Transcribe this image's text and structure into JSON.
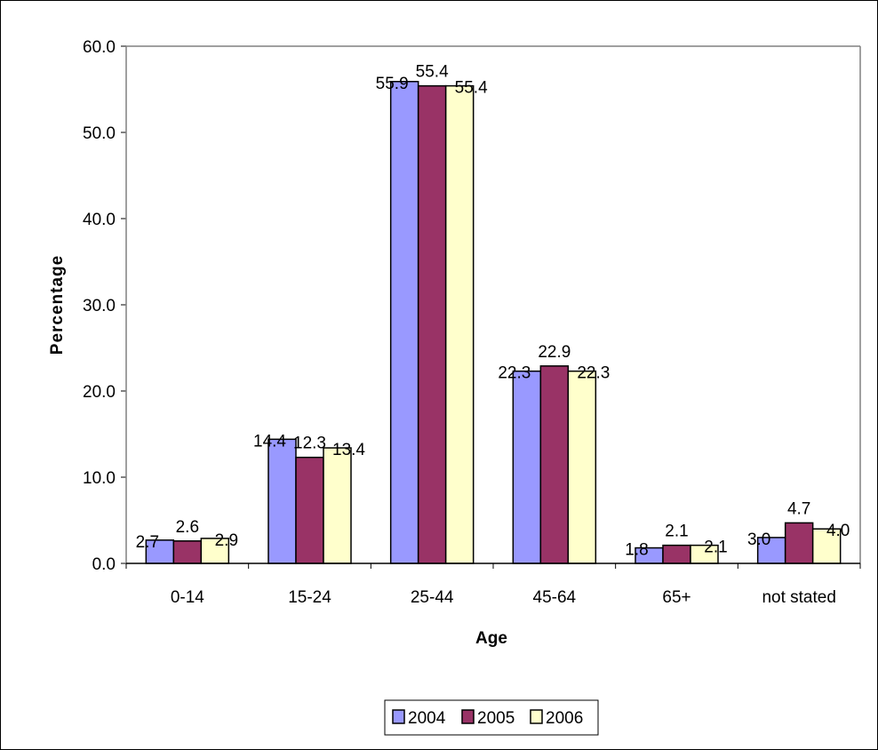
{
  "chart_data": {
    "type": "bar",
    "categories": [
      "0-14",
      "15-24",
      "25-44",
      "45-64",
      "65+",
      "not stated"
    ],
    "series": [
      {
        "name": "2004",
        "color": "#9999FF",
        "values": [
          2.7,
          14.4,
          55.9,
          22.3,
          1.8,
          3.0
        ]
      },
      {
        "name": "2005",
        "color": "#993366",
        "values": [
          2.6,
          12.3,
          55.4,
          22.9,
          2.1,
          4.7
        ]
      },
      {
        "name": "2006",
        "color": "#FFFFCC",
        "values": [
          2.9,
          13.4,
          55.4,
          22.3,
          2.1,
          4.0
        ]
      }
    ],
    "data_labels": [
      [
        "2.7",
        "14.4",
        "55.9",
        "22.3",
        "1.8",
        "3.0"
      ],
      [
        "2.6",
        "12.3",
        "55.4",
        "22.9",
        "2.1",
        "4.7"
      ],
      [
        "2.9",
        "13.4",
        "55.4",
        "22.3",
        "2.1",
        "4.0"
      ]
    ],
    "y_ticks": [
      "0.0",
      "10.0",
      "20.0",
      "30.0",
      "40.0",
      "50.0",
      "60.0"
    ],
    "xlabel": "Age",
    "ylabel": "Percentage",
    "ylim": [
      0,
      60
    ],
    "grid": false,
    "legend_position": "bottom"
  }
}
